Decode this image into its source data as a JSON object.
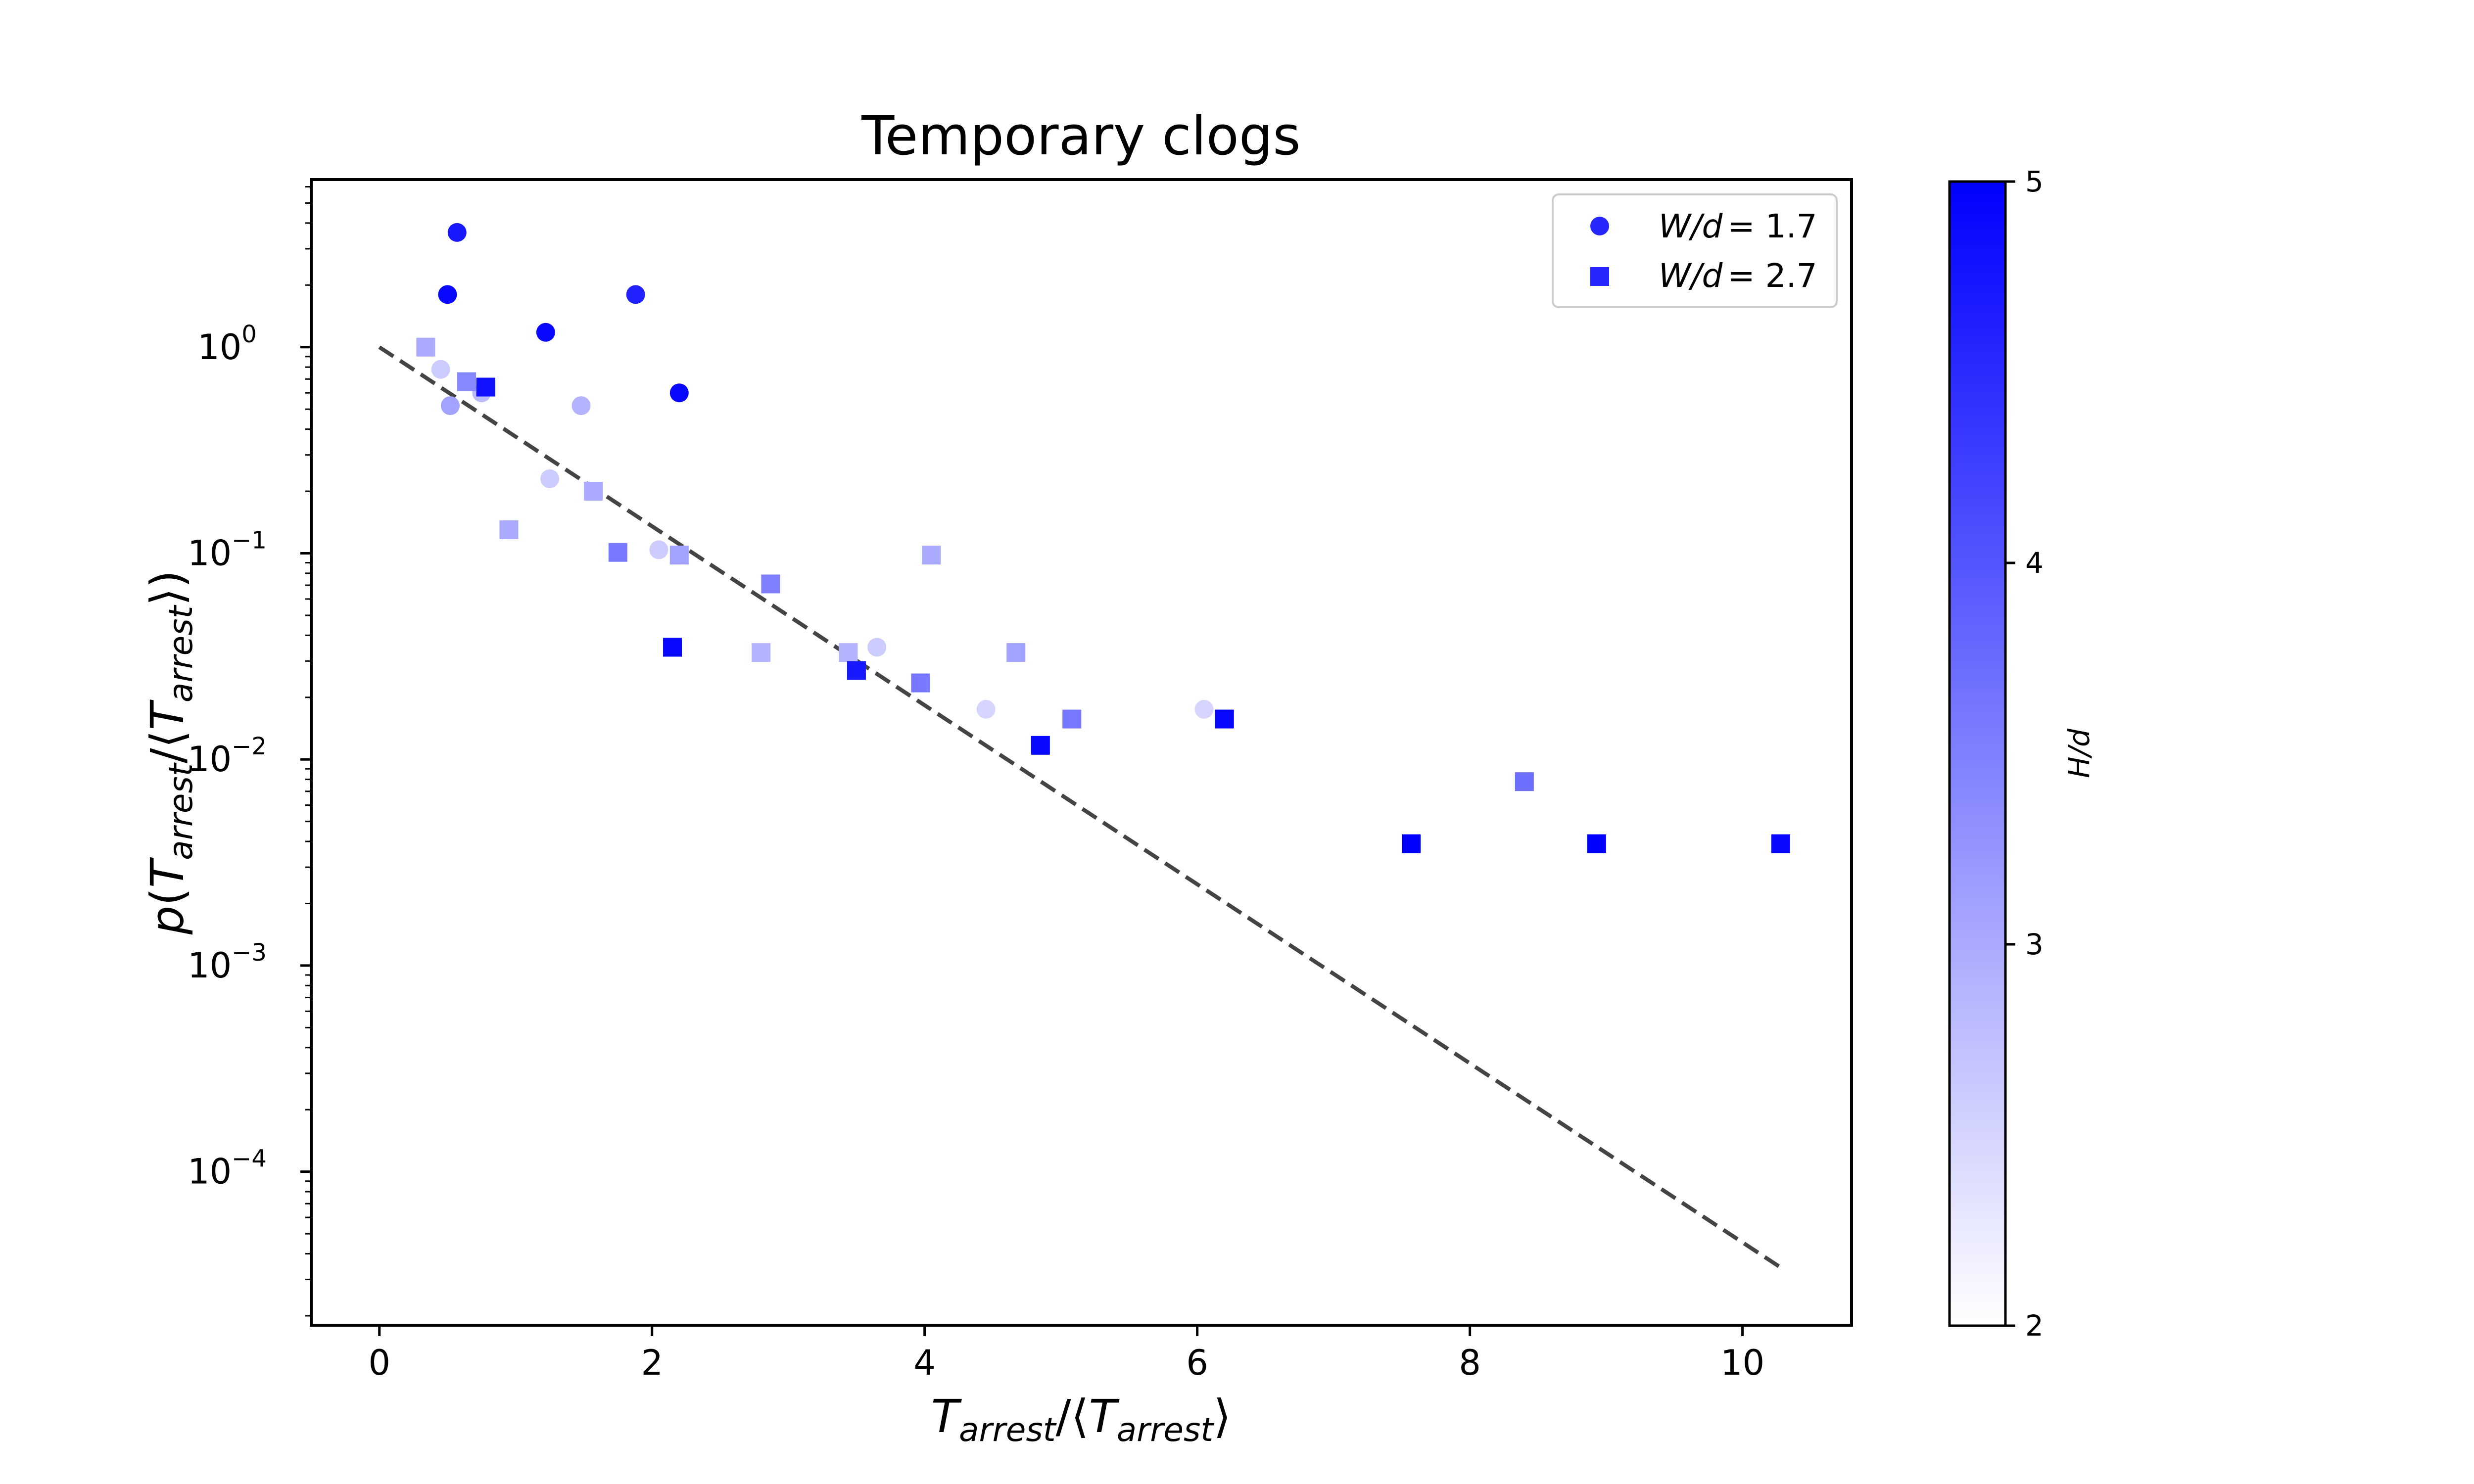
{
  "chart_data": {
    "type": "scatter",
    "title": "Temporary clogs",
    "xlabel": "T_arrest/⟨T_arrest⟩",
    "ylabel": "p(T_arrest/⟨T_arrest⟩)",
    "xlim": [
      -0.5,
      10.8
    ],
    "ylim": [
      1.8e-05,
      6.5
    ],
    "yscale": "log",
    "x_ticks": [
      0,
      2,
      4,
      6,
      8,
      10
    ],
    "x_tick_labels": [
      "0",
      "2",
      "4",
      "6",
      "8",
      "10"
    ],
    "y_ticks": [
      1,
      0.1,
      0.01,
      0.001,
      0.0001
    ],
    "y_tick_labels": [
      {
        "base": "10",
        "exp": "0"
      },
      {
        "base": "10",
        "exp": "−1"
      },
      {
        "base": "10",
        "exp": "−2"
      },
      {
        "base": "10",
        "exp": "−3"
      },
      {
        "base": "10",
        "exp": "−4"
      }
    ],
    "legend": {
      "position": "upper right",
      "entries": [
        {
          "marker": "circle",
          "label": "W/d = 1.7",
          "label_italic": "W/d",
          "label_value": "= 1.7"
        },
        {
          "marker": "square",
          "label": "W/d = 2.7",
          "label_italic": "W/d",
          "label_value": "= 2.7"
        }
      ]
    },
    "colorbar": {
      "label": "H/d",
      "min": 2,
      "max": 5,
      "ticks": [
        2,
        3,
        4,
        5
      ],
      "tick_labels": [
        "2",
        "3",
        "4",
        "5"
      ],
      "color_low": "#ffffff",
      "color_high": "#0000ff"
    },
    "reference_line": {
      "style": "dashed",
      "color": "#444444",
      "function": "exp(-x)",
      "x_range": [
        0,
        10.3
      ]
    },
    "series": [
      {
        "name": "W/d = 1.7",
        "marker": "circle",
        "points": [
          {
            "x": 0.57,
            "y": 3.6,
            "c": 4.7
          },
          {
            "x": 0.5,
            "y": 1.8,
            "c": 4.9
          },
          {
            "x": 1.22,
            "y": 1.18,
            "c": 4.9
          },
          {
            "x": 1.88,
            "y": 1.8,
            "c": 4.6
          },
          {
            "x": 2.2,
            "y": 0.6,
            "c": 4.9
          },
          {
            "x": 0.45,
            "y": 0.78,
            "c": 2.6
          },
          {
            "x": 0.52,
            "y": 0.52,
            "c": 3.1
          },
          {
            "x": 0.75,
            "y": 0.6,
            "c": 2.8
          },
          {
            "x": 1.48,
            "y": 0.52,
            "c": 2.9
          },
          {
            "x": 1.25,
            "y": 0.23,
            "c": 2.6
          },
          {
            "x": 2.05,
            "y": 0.104,
            "c": 2.6
          },
          {
            "x": 3.65,
            "y": 0.035,
            "c": 2.6
          },
          {
            "x": 4.45,
            "y": 0.0175,
            "c": 2.5
          },
          {
            "x": 6.05,
            "y": 0.0175,
            "c": 2.5
          }
        ]
      },
      {
        "name": "W/d = 2.7",
        "marker": "square",
        "points": [
          {
            "x": 0.34,
            "y": 1.0,
            "c": 3.0
          },
          {
            "x": 0.64,
            "y": 0.68,
            "c": 3.4
          },
          {
            "x": 0.78,
            "y": 0.64,
            "c": 4.8
          },
          {
            "x": 0.95,
            "y": 0.13,
            "c": 3.0
          },
          {
            "x": 1.57,
            "y": 0.2,
            "c": 3.0
          },
          {
            "x": 1.75,
            "y": 0.101,
            "c": 3.6
          },
          {
            "x": 2.2,
            "y": 0.098,
            "c": 3.1
          },
          {
            "x": 2.15,
            "y": 0.035,
            "c": 4.9
          },
          {
            "x": 2.87,
            "y": 0.071,
            "c": 3.5
          },
          {
            "x": 2.8,
            "y": 0.033,
            "c": 2.9
          },
          {
            "x": 3.44,
            "y": 0.033,
            "c": 2.9
          },
          {
            "x": 3.5,
            "y": 0.027,
            "c": 4.7
          },
          {
            "x": 4.05,
            "y": 0.098,
            "c": 3.0
          },
          {
            "x": 3.97,
            "y": 0.0235,
            "c": 3.6
          },
          {
            "x": 4.67,
            "y": 0.033,
            "c": 3.1
          },
          {
            "x": 4.85,
            "y": 0.0117,
            "c": 4.9
          },
          {
            "x": 5.08,
            "y": 0.0157,
            "c": 3.6
          },
          {
            "x": 6.2,
            "y": 0.0157,
            "c": 4.9
          },
          {
            "x": 7.57,
            "y": 0.0039,
            "c": 5.0
          },
          {
            "x": 8.4,
            "y": 0.0078,
            "c": 3.7
          },
          {
            "x": 8.93,
            "y": 0.0039,
            "c": 5.0
          },
          {
            "x": 10.28,
            "y": 0.0039,
            "c": 4.9
          }
        ]
      }
    ]
  }
}
